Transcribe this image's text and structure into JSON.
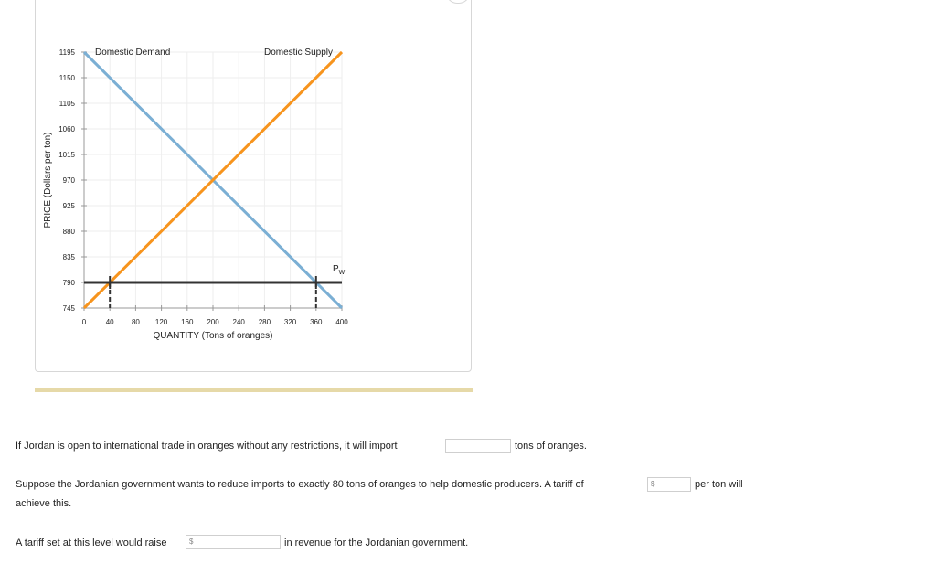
{
  "chart_data": {
    "type": "line",
    "xlabel": "QUANTITY (Tons of oranges)",
    "ylabel": "PRICE (Dollars per ton)",
    "xlim": [
      0,
      400
    ],
    "ylim": [
      745,
      1195
    ],
    "x_ticks": [
      0,
      40,
      80,
      120,
      160,
      200,
      240,
      280,
      320,
      360,
      400
    ],
    "y_ticks": [
      745,
      790,
      835,
      880,
      925,
      970,
      1015,
      1060,
      1105,
      1150,
      1195
    ],
    "grid": true,
    "series": [
      {
        "name": "Domestic Demand",
        "color": "#7bafd4",
        "points": [
          [
            0,
            1195
          ],
          [
            400,
            745
          ]
        ]
      },
      {
        "name": "Domestic Supply",
        "color": "#f7941d",
        "points": [
          [
            0,
            745
          ],
          [
            400,
            1195
          ]
        ]
      }
    ],
    "world_price": {
      "label": "P",
      "sub": "W",
      "value": 790,
      "color": "#333333"
    },
    "markers": [
      {
        "x": 40,
        "y": 790
      },
      {
        "x": 360,
        "y": 790
      }
    ]
  },
  "questions": {
    "q1_before": "If Jordan is open to international trade in oranges without any restrictions, it will import",
    "q1_after": "tons of oranges.",
    "q2_before": "Suppose the Jordanian government wants to reduce imports to exactly 80 tons of oranges to help domestic producers. A tariff of",
    "q2_after": "per ton will",
    "q2_line2": "achieve this.",
    "q3_before": "A tariff set at this level would raise",
    "q3_after": "in revenue for the Jordanian government.",
    "currency_symbol": "$"
  }
}
